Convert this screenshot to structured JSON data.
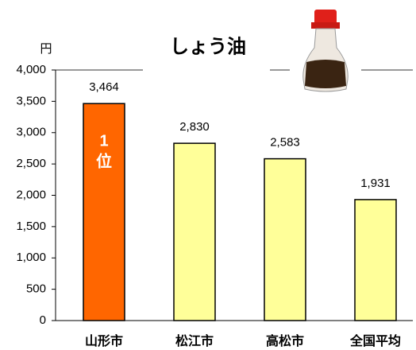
{
  "chart_data": {
    "type": "bar",
    "title": "しょう油",
    "y_unit": "円",
    "categories": [
      "山形市",
      "松江市",
      "高松市",
      "全国平均"
    ],
    "values": [
      3464,
      2830,
      2583,
      1931
    ],
    "value_labels": [
      "3,464",
      "2,830",
      "2,583",
      "1,931"
    ],
    "colors": [
      "#ff6600",
      "#ffff99",
      "#ffff99",
      "#ffff99"
    ],
    "annotation": {
      "rank": "1",
      "suffix": "位"
    },
    "ylim": [
      0,
      4000
    ],
    "yticks": [
      0,
      500,
      {
        "value": 1000,
        "label": "1,000"
      },
      {
        "value": 1500,
        "label": "1,500"
      },
      {
        "value": 2000,
        "label": "2,000"
      },
      {
        "value": 2500,
        "label": "2,500"
      },
      {
        "value": 3000,
        "label": "3,000"
      },
      {
        "value": 3500,
        "label": "3,500"
      },
      {
        "value": 4000,
        "label": "4,000"
      }
    ],
    "grid": false
  }
}
